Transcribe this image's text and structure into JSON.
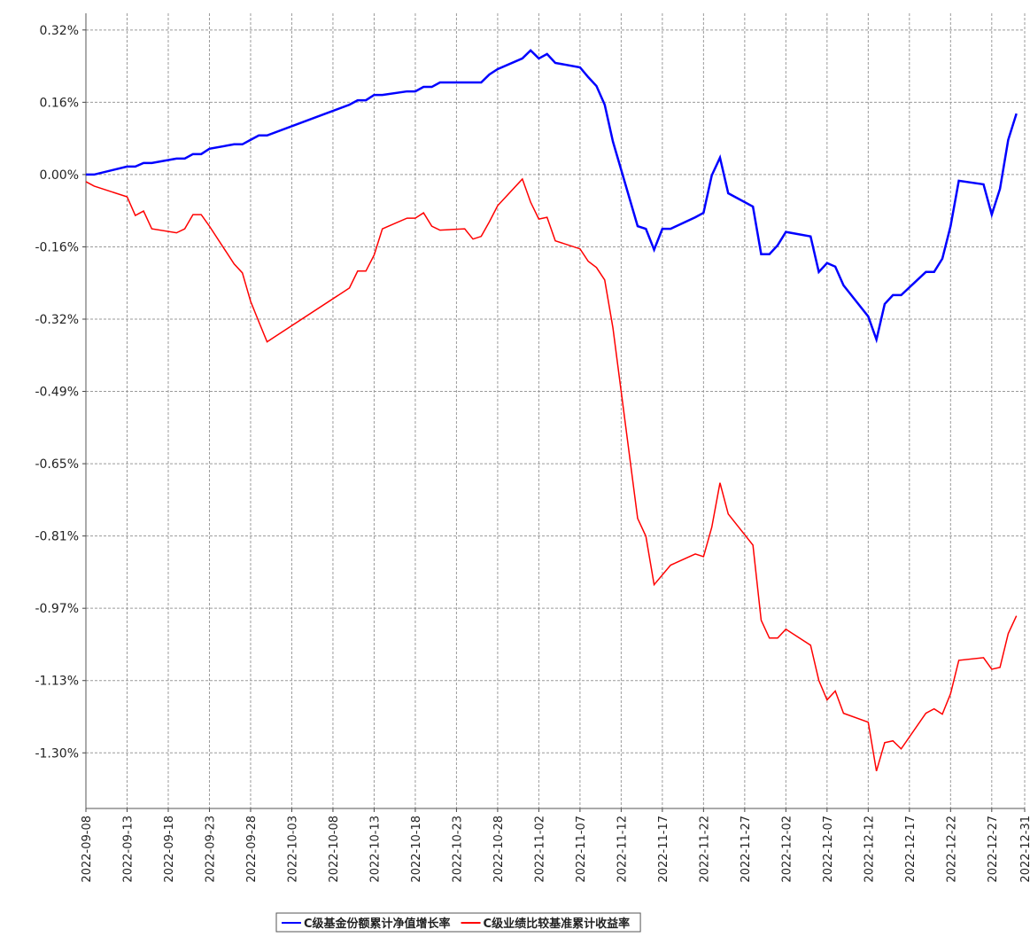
{
  "chart_data": {
    "type": "line",
    "x": [
      "2022-09-08",
      "2022-09-09",
      "2022-09-13",
      "2022-09-14",
      "2022-09-15",
      "2022-09-16",
      "2022-09-19",
      "2022-09-20",
      "2022-09-21",
      "2022-09-22",
      "2022-09-23",
      "2022-09-26",
      "2022-09-27",
      "2022-09-28",
      "2022-09-29",
      "2022-09-30",
      "2022-10-10",
      "2022-10-11",
      "2022-10-12",
      "2022-10-13",
      "2022-10-14",
      "2022-10-17",
      "2022-10-18",
      "2022-10-19",
      "2022-10-20",
      "2022-10-21",
      "2022-10-24",
      "2022-10-25",
      "2022-10-26",
      "2022-10-27",
      "2022-10-28",
      "2022-10-31",
      "2022-11-01",
      "2022-11-02",
      "2022-11-03",
      "2022-11-04",
      "2022-11-07",
      "2022-11-08",
      "2022-11-09",
      "2022-11-10",
      "2022-11-11",
      "2022-11-14",
      "2022-11-15",
      "2022-11-16",
      "2022-11-17",
      "2022-11-18",
      "2022-11-21",
      "2022-11-22",
      "2022-11-23",
      "2022-11-24",
      "2022-11-25",
      "2022-11-28",
      "2022-11-29",
      "2022-11-30",
      "2022-12-01",
      "2022-12-02",
      "2022-12-05",
      "2022-12-06",
      "2022-12-07",
      "2022-12-08",
      "2022-12-09",
      "2022-12-12",
      "2022-12-13",
      "2022-12-14",
      "2022-12-15",
      "2022-12-16",
      "2022-12-19",
      "2022-12-20",
      "2022-12-21",
      "2022-12-22",
      "2022-12-23",
      "2022-12-26",
      "2022-12-27",
      "2022-12-28",
      "2022-12-29",
      "2022-12-30"
    ],
    "series": [
      {
        "name": "C级基金份额累计净值增长率",
        "color": "#0000ff",
        "values": [
          0,
          0,
          0.018,
          0.018,
          0.026,
          0.026,
          0.036,
          0.036,
          0.046,
          0.046,
          0.058,
          0.068,
          0.068,
          0.078,
          0.088,
          0.088,
          0.157,
          0.167,
          0.167,
          0.179,
          0.179,
          0.187,
          0.187,
          0.197,
          0.197,
          0.207,
          0.207,
          0.207,
          0.207,
          0.225,
          0.237,
          0.261,
          0.279,
          0.261,
          0.271,
          0.251,
          0.241,
          0.219,
          0.199,
          0.157,
          0.074,
          -0.116,
          -0.122,
          -0.169,
          -0.122,
          -0.122,
          -0.096,
          -0.086,
          -0.002,
          0.038,
          -0.042,
          -0.072,
          -0.179,
          -0.179,
          -0.159,
          -0.129,
          -0.139,
          -0.219,
          -0.199,
          -0.207,
          -0.249,
          -0.319,
          -0.371,
          -0.291,
          -0.271,
          -0.271,
          -0.219,
          -0.219,
          -0.189,
          -0.116,
          -0.014,
          -0.022,
          -0.09,
          -0.032,
          0.078,
          0.137
        ]
      },
      {
        "name": "C级业绩比较基准累计收益率",
        "color": "#ff0000",
        "values": [
          -0.016,
          -0.026,
          -0.05,
          -0.092,
          -0.082,
          -0.122,
          -0.131,
          -0.122,
          -0.09,
          -0.09,
          -0.116,
          -0.201,
          -0.221,
          -0.285,
          -0.331,
          -0.376,
          -0.255,
          -0.217,
          -0.217,
          -0.181,
          -0.122,
          -0.098,
          -0.098,
          -0.086,
          -0.116,
          -0.125,
          -0.122,
          -0.145,
          -0.139,
          -0.106,
          -0.07,
          -0.01,
          -0.062,
          -0.1,
          -0.096,
          -0.149,
          -0.167,
          -0.195,
          -0.209,
          -0.237,
          -0.345,
          -0.773,
          -0.813,
          -0.922,
          -0.9,
          -0.878,
          -0.853,
          -0.859,
          -0.793,
          -0.693,
          -0.763,
          -0.833,
          -1.002,
          -1.042,
          -1.042,
          -1.022,
          -1.058,
          -1.137,
          -1.181,
          -1.161,
          -1.211,
          -1.231,
          -1.341,
          -1.277,
          -1.273,
          -1.291,
          -1.211,
          -1.201,
          -1.213,
          -1.167,
          -1.092,
          -1.086,
          -1.112,
          -1.108,
          -1.032,
          -0.992
        ]
      }
    ],
    "xlim": [
      "2022-09-08",
      "2022-12-31"
    ],
    "xticks": [
      "2022-09-08",
      "2022-09-13",
      "2022-09-18",
      "2022-09-23",
      "2022-09-28",
      "2022-10-03",
      "2022-10-08",
      "2022-10-13",
      "2022-10-18",
      "2022-10-23",
      "2022-10-28",
      "2022-11-02",
      "2022-11-07",
      "2022-11-12",
      "2022-11-17",
      "2022-11-22",
      "2022-11-27",
      "2022-12-02",
      "2022-12-07",
      "2022-12-12",
      "2022-12-17",
      "2022-12-22",
      "2022-12-27",
      "2022-12-31"
    ],
    "ylim": [
      -1.425,
      0.3625
    ],
    "yticks": [
      {
        "value": 0.325,
        "label": "0.32%"
      },
      {
        "value": 0.1625,
        "label": "0.16%"
      },
      {
        "value": 0,
        "label": "0.00%"
      },
      {
        "value": -0.1625,
        "label": "-0.16%"
      },
      {
        "value": -0.325,
        "label": "-0.32%"
      },
      {
        "value": -0.4875,
        "label": "-0.49%"
      },
      {
        "value": -0.65,
        "label": "-0.65%"
      },
      {
        "value": -0.8125,
        "label": "-0.81%"
      },
      {
        "value": -0.975,
        "label": "-0.97%"
      },
      {
        "value": -1.1375,
        "label": "-1.13%"
      },
      {
        "value": -1.3,
        "label": "-1.30%"
      }
    ],
    "grid": true
  }
}
